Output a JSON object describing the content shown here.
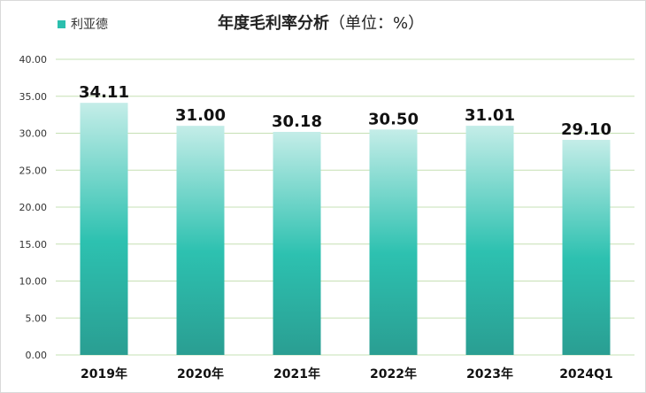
{
  "chart_data": {
    "type": "bar",
    "title": "年度毛利率分析",
    "unit_label": "（单位：%）",
    "categories": [
      "2019年",
      "2020年",
      "2021年",
      "2022年",
      "2023年",
      "2024Q1"
    ],
    "series": [
      {
        "name": "利亚德",
        "values": [
          34.11,
          31.0,
          30.18,
          30.5,
          31.01,
          29.1
        ]
      }
    ],
    "data_labels": [
      "34.11",
      "31.00",
      "30.18",
      "30.50",
      "31.01",
      "29.10"
    ],
    "y_ticks": [
      "0.00",
      "5.00",
      "10.00",
      "15.00",
      "20.00",
      "25.00",
      "30.00",
      "35.00",
      "40.00"
    ],
    "ylim": [
      0,
      40
    ],
    "grid": true,
    "legend_position": "top-left",
    "colors": {
      "bar_top": "#c4ede8",
      "bar_mid": "#2dc1b0",
      "bar_bottom": "#2a9e92",
      "grid": "#c6e0b4"
    }
  }
}
